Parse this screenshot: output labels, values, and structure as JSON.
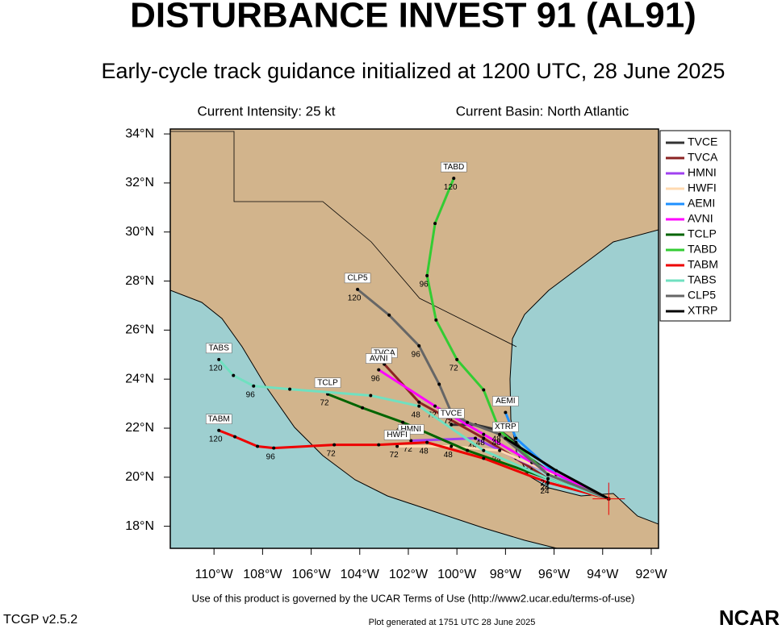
{
  "header": {
    "title": "DISTURBANCE INVEST 91 (AL91)",
    "subtitle": "Early-cycle track guidance initialized at 1200 UTC, 28 June 2025",
    "intensity": "Current Intensity: 25 kt",
    "basin": "Current Basin: North Atlantic"
  },
  "footer": {
    "terms": "Use of this product is governed by the UCAR Terms of Use (http://www2.ucar.edu/terms-of-use)",
    "version": "TCGP v2.5.2",
    "generated": "Plot generated at 1751 UTC   28 June 2025",
    "logo": "NCAR"
  },
  "chart_data": {
    "type": "track",
    "xlim": [
      -111.8,
      -91.7
    ],
    "ylim": [
      17.1,
      34.2
    ],
    "xticks": [
      {
        "value": -110,
        "label": "110°W"
      },
      {
        "value": -108,
        "label": "108°W"
      },
      {
        "value": -106,
        "label": "106°W"
      },
      {
        "value": -104,
        "label": "104°W"
      },
      {
        "value": -102,
        "label": "102°W"
      },
      {
        "value": -100,
        "label": "100°W"
      },
      {
        "value": -98,
        "label": "98°W"
      },
      {
        "value": -96,
        "label": "96°W"
      },
      {
        "value": -94,
        "label": "94°W"
      },
      {
        "value": -92,
        "label": "92°W"
      }
    ],
    "yticks": [
      {
        "value": 18,
        "label": "18°N"
      },
      {
        "value": 20,
        "label": "20°N"
      },
      {
        "value": 22,
        "label": "22°N"
      },
      {
        "value": 24,
        "label": "24°N"
      },
      {
        "value": 26,
        "label": "26°N"
      },
      {
        "value": 28,
        "label": "28°N"
      },
      {
        "value": 30,
        "label": "30°N"
      },
      {
        "value": 32,
        "label": "32°N"
      },
      {
        "value": 34,
        "label": "34°N"
      }
    ],
    "series": [
      {
        "name": "TVCE",
        "color": "#333333",
        "lon": [
          -93.75,
          -94.92,
          -96.25,
          -97.08,
          -97.57,
          -98.24,
          -99.24,
          -100.23
        ],
        "lat": [
          19.12,
          19.62,
          20.27,
          20.83,
          21.42,
          21.91,
          22.14,
          22.14
        ]
      },
      {
        "name": "TVCA",
        "color": "#8b2323",
        "lon": [
          -93.75,
          -96.25,
          -98.9,
          -101.56,
          -102.99
        ],
        "lat": [
          19.12,
          19.94,
          21.59,
          23.06,
          24.61
        ]
      },
      {
        "name": "HMNI",
        "color": "#a040f0",
        "lon": [
          -93.75,
          -97.57,
          -99.24,
          -101.89
        ],
        "lat": [
          19.12,
          20.77,
          21.59,
          21.49
        ],
        "labels": [
          null,
          null,
          "48",
          "72"
        ]
      },
      {
        "name": "HWFI",
        "color": "#ffdab0",
        "lon": [
          -93.75,
          -98.24,
          -100.23,
          -102.46
        ],
        "lat": [
          19.12,
          21.09,
          21.26,
          21.26
        ],
        "labels": [
          null,
          "24",
          "48",
          "72"
        ]
      },
      {
        "name": "AEMI",
        "color": "#1e90ff",
        "lon": [
          -93.75,
          -95.91,
          -97.57,
          -98.0
        ],
        "lat": [
          19.12,
          20.11,
          21.59,
          22.64
        ]
      },
      {
        "name": "AVNI",
        "color": "#ff00ff",
        "lon": [
          -93.75,
          -96.91,
          -98.9,
          -100.9,
          -103.22
        ],
        "lat": [
          19.12,
          20.6,
          21.75,
          22.9,
          24.38
        ],
        "labels": [
          null,
          "24",
          "48",
          "72",
          "96"
        ]
      },
      {
        "name": "TCLP",
        "color": "#006400",
        "lon": [
          -93.75,
          -96.25,
          -99.57,
          -102.23,
          -103.89,
          -105.32
        ],
        "lat": [
          19.12,
          19.94,
          21.09,
          22.24,
          22.83,
          23.39
        ],
        "labels": [
          null,
          "24",
          null,
          "48",
          null,
          "72"
        ]
      },
      {
        "name": "TABD",
        "color": "#33cc33",
        "lon": [
          -93.75,
          -96.25,
          -98.24,
          -98.9,
          -100.0,
          -100.86,
          -101.23,
          -100.9,
          -100.13
        ],
        "lat": [
          19.12,
          20.11,
          21.91,
          23.56,
          24.8,
          26.41,
          28.22,
          30.35,
          32.19
        ],
        "labels": [
          null,
          "24",
          "48",
          null,
          "72",
          null,
          "96",
          null,
          "120"
        ]
      },
      {
        "name": "TABM",
        "color": "#ee0000",
        "lon": [
          -93.75,
          -96.25,
          -98.9,
          -101.23,
          -103.22,
          -105.05,
          -107.54,
          -108.21,
          -109.14,
          -109.8
        ],
        "lat": [
          19.12,
          19.78,
          20.77,
          21.42,
          21.32,
          21.32,
          21.19,
          21.26,
          21.65,
          21.91
        ],
        "labels": [
          null,
          "24",
          null,
          "48",
          null,
          "72",
          "96",
          null,
          null,
          "120"
        ]
      },
      {
        "name": "TABS",
        "color": "#70e0c0",
        "lon": [
          -93.75,
          -96.25,
          -98.9,
          -101.56,
          -103.55,
          -106.88,
          -108.37,
          -109.2,
          -109.8
        ],
        "lat": [
          19.12,
          19.94,
          21.09,
          22.9,
          23.33,
          23.59,
          23.72,
          24.15,
          24.8
        ],
        "labels": [
          null,
          "24",
          null,
          "48",
          null,
          null,
          "96",
          null,
          "120"
        ]
      },
      {
        "name": "CLP5",
        "color": "#666666",
        "lon": [
          -93.75,
          -96.25,
          -98.24,
          -99.57,
          -100.23,
          -100.73,
          -101.56,
          -102.79,
          -104.09
        ],
        "lat": [
          19.12,
          20.11,
          21.75,
          22.24,
          22.64,
          23.79,
          25.36,
          26.61,
          27.66
        ],
        "labels": [
          null,
          "24",
          "48",
          null,
          "72",
          null,
          "96",
          null,
          "120"
        ]
      },
      {
        "name": "XTRP",
        "color": "#000000",
        "lon": [
          -93.75,
          -95.91,
          -98.0
        ],
        "lat": [
          19.12,
          20.27,
          21.59
        ]
      }
    ]
  }
}
